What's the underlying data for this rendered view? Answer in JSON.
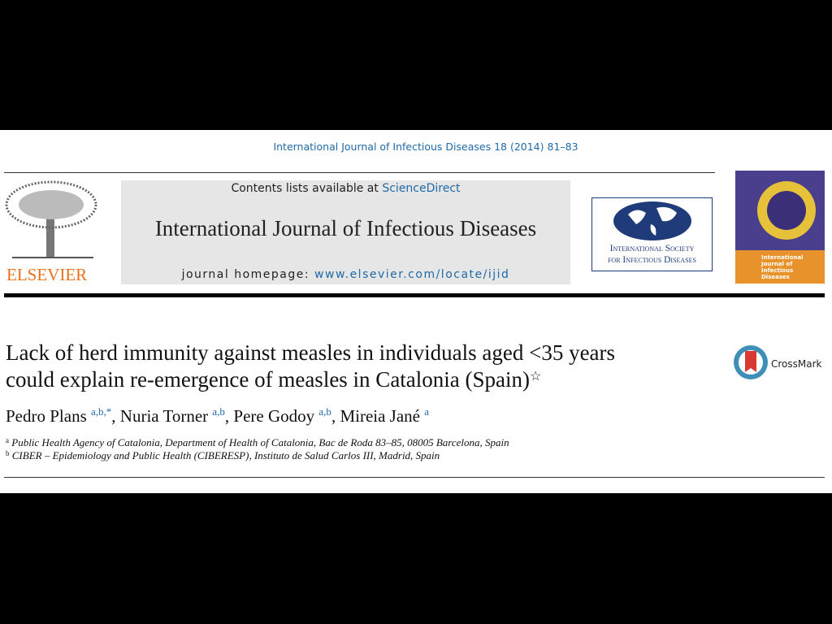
{
  "header": {
    "citation": "International Journal of Infectious Diseases 18 (2014) 81–83",
    "contents_prefix": "Contents lists available at",
    "contents_link": "ScienceDirect",
    "journal_title": "International Journal of Infectious Diseases",
    "homepage_label": "journal homepage:",
    "homepage_url": "www.elsevier.com/locate/ijid",
    "publisher": "ELSEVIER",
    "society_lines": [
      "International Society",
      "for Infectious Diseases"
    ],
    "cover_title": "International Journal of Infectious Diseases"
  },
  "article": {
    "title_lines": [
      "Lack of herd immunity against measles in individuals aged <35 years",
      "could explain re-emergence of measles in Catalonia (Spain)"
    ],
    "title_note": "☆",
    "crossmark": "CrossMark",
    "author_separator": ",",
    "authors": [
      {
        "name": "Pedro Plans",
        "affil": "a,b,*"
      },
      {
        "name": "Nuria Torner",
        "affil": "a,b"
      },
      {
        "name": "Pere Godoy",
        "affil": "a,b"
      },
      {
        "name": "Mireia Jané",
        "affil": "a"
      }
    ],
    "affiliations": [
      {
        "mark": "a",
        "text": "Public Health Agency of Catalonia, Department of Health of Catalonia, Bac de Roda 83–85, 08005 Barcelona, Spain"
      },
      {
        "mark": "b",
        "text": "CIBER – Epidemiology and Public Health (CIBERESP), Instituto de Salud Carlos III, Madrid, Spain"
      }
    ]
  }
}
